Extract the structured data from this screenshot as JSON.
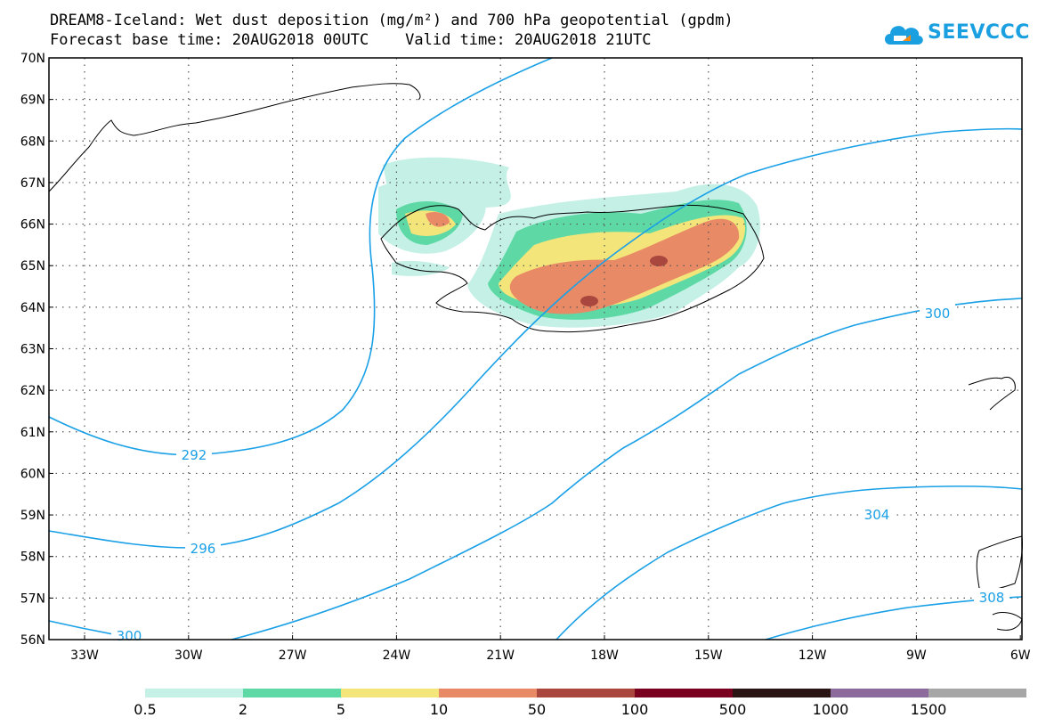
{
  "title_line1": "DREAM8-Iceland: Wet dust deposition (mg/m²) and 700 hPa geopotential (gpdm)",
  "title_line2": "Forecast base time: 20AUG2018 00UTC    Valid time: 20AUG2018 21UTC",
  "logo_text": "SEEVCCC",
  "logo_icon": "cloud-icon",
  "map": {
    "lat_labels": [
      "70N",
      "69N",
      "68N",
      "67N",
      "66N",
      "65N",
      "64N",
      "63N",
      "62N",
      "61N",
      "60N",
      "59N",
      "58N",
      "57N",
      "56N"
    ],
    "lon_labels": [
      "33W",
      "30W",
      "27W",
      "24W",
      "21W",
      "18W",
      "15W",
      "12W",
      "9W",
      "6W"
    ]
  },
  "contours": [
    {
      "label": "292"
    },
    {
      "label": "296"
    },
    {
      "label": "300"
    },
    {
      "label": "300"
    },
    {
      "label": "304"
    },
    {
      "label": "308"
    }
  ],
  "colorbar": {
    "labels": [
      "0.5",
      "2",
      "5",
      "10",
      "50",
      "100",
      "500",
      "1000",
      "1500"
    ],
    "colors": [
      "#c4f0e6",
      "#5ed9a6",
      "#f4e57a",
      "#e88a66",
      "#a9473f",
      "#7a0020",
      "#2b1414",
      "#8c6a9c",
      "#a6a6a6"
    ]
  },
  "colors": {
    "contour": "#1aa0e6",
    "dust_light": "#c4f0e6",
    "dust_green": "#5ed9a6",
    "dust_yellow": "#f4e57a",
    "dust_orange": "#e88a66",
    "dust_brown": "#a9473f"
  }
}
